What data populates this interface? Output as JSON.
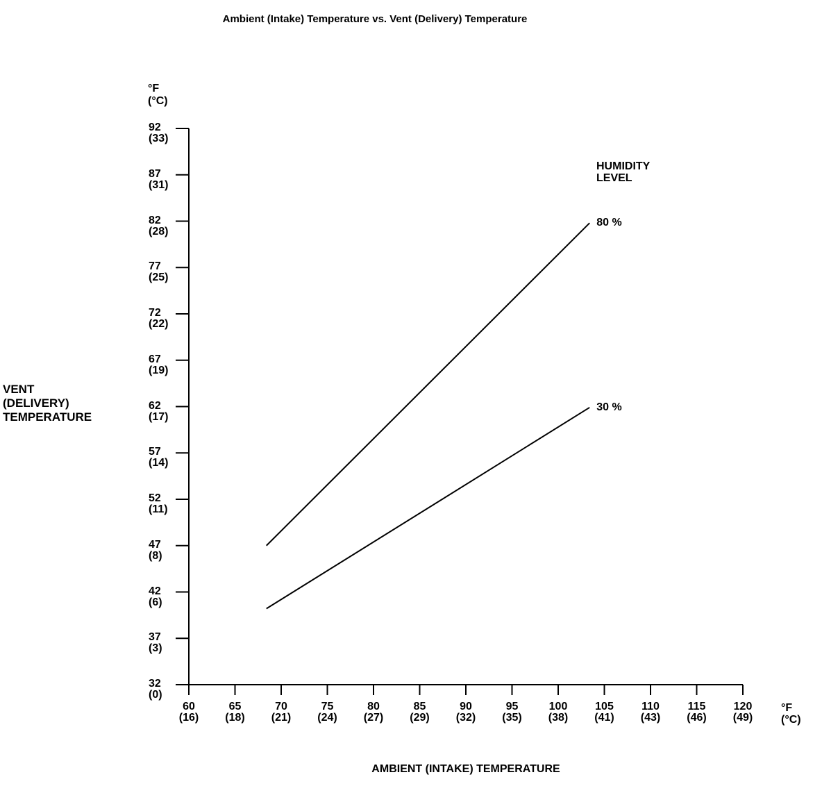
{
  "page": {
    "background": "#ffffff",
    "ink": "#000000"
  },
  "chart_data": {
    "type": "line",
    "title": "Ambient (Intake) Temperature vs. Vent (Delivery) Temperature",
    "x_axis": {
      "label": "AMBIENT (INTAKE) TEMPERATURE",
      "unit_label": "°F\n(°C)",
      "ticks": [
        {
          "f": 60,
          "c": 16
        },
        {
          "f": 65,
          "c": 18
        },
        {
          "f": 70,
          "c": 21
        },
        {
          "f": 75,
          "c": 24
        },
        {
          "f": 80,
          "c": 27
        },
        {
          "f": 85,
          "c": 29
        },
        {
          "f": 90,
          "c": 32
        },
        {
          "f": 95,
          "c": 35
        },
        {
          "f": 100,
          "c": 38
        },
        {
          "f": 105,
          "c": 41
        },
        {
          "f": 110,
          "c": 43
        },
        {
          "f": 115,
          "c": 46
        },
        {
          "f": 120,
          "c": 49
        }
      ]
    },
    "y_axis": {
      "label": "VENT\n(DELIVERY)\nTEMPERATURE",
      "unit_label": "°F\n(°C)",
      "ticks": [
        {
          "f": 92,
          "c": 33
        },
        {
          "f": 87,
          "c": 31
        },
        {
          "f": 82,
          "c": 28
        },
        {
          "f": 77,
          "c": 25
        },
        {
          "f": 72,
          "c": 22
        },
        {
          "f": 67,
          "c": 19
        },
        {
          "f": 62,
          "c": 17
        },
        {
          "f": 57,
          "c": 14
        },
        {
          "f": 52,
          "c": 11
        },
        {
          "f": 47,
          "c": 8
        },
        {
          "f": 42,
          "c": 6
        },
        {
          "f": 37,
          "c": 3
        },
        {
          "f": 32,
          "c": 0
        }
      ]
    },
    "legend": {
      "title": "HUMIDITY\nLEVEL",
      "position": "upper right"
    },
    "series": [
      {
        "name": "80 %",
        "points": [
          [
            68.4,
            47.0
          ],
          [
            103.4,
            81.8
          ]
        ]
      },
      {
        "name": "30 %",
        "points": [
          [
            68.4,
            40.2
          ],
          [
            103.4,
            61.9
          ]
        ]
      }
    ],
    "xlim": [
      60,
      120
    ],
    "ylim": [
      32,
      92
    ],
    "grid": false,
    "line_color": "#000000"
  }
}
